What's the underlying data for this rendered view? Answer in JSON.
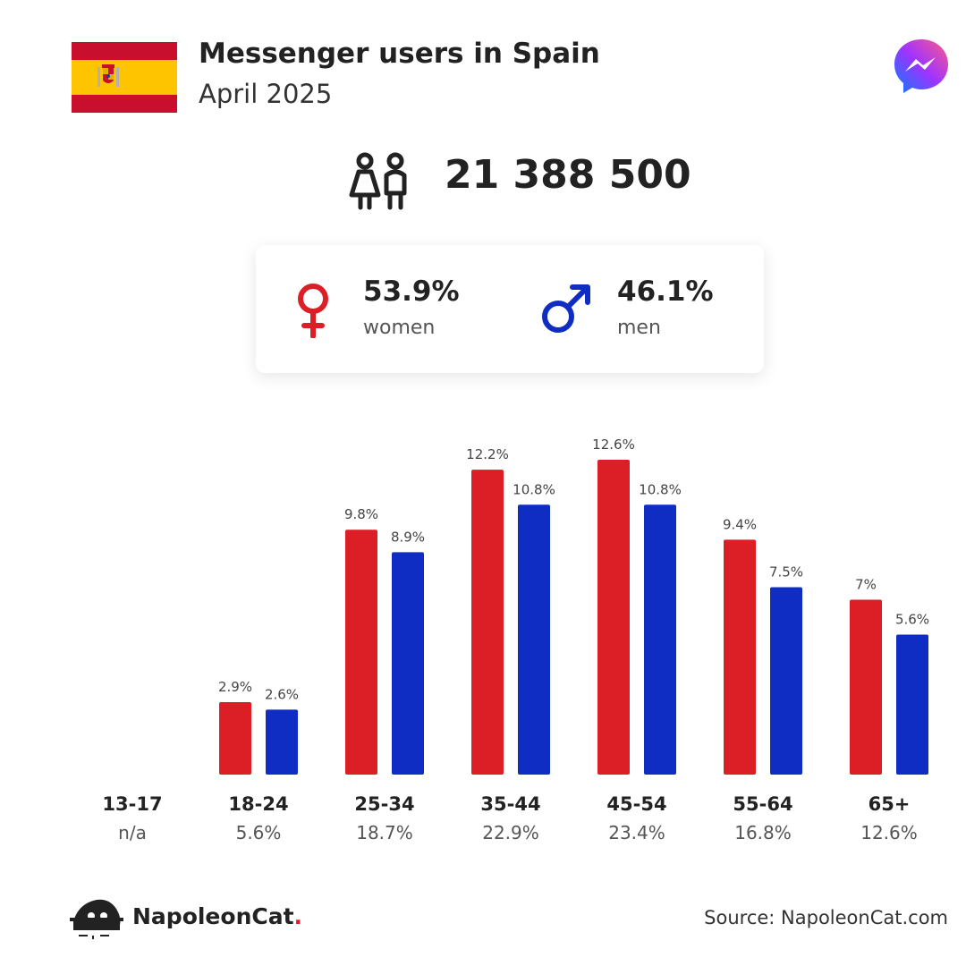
{
  "header": {
    "title": "Messenger users in Spain",
    "subtitle": "April 2025",
    "flag_country": "Spain",
    "logo_icon": "messenger-logo-icon"
  },
  "total": {
    "value": "21 388 500",
    "icon": "people-icon"
  },
  "gender": {
    "women_pct": "53.9%",
    "women_label": "women",
    "women_icon": "female-symbol-icon",
    "men_pct": "46.1%",
    "men_label": "men",
    "men_icon": "male-symbol-icon"
  },
  "colors": {
    "women": "#dc1f26",
    "men": "#0f2dc2",
    "text": "#222222",
    "muted": "#555555"
  },
  "chart_data": {
    "type": "bar",
    "categories": [
      "13-17",
      "18-24",
      "25-34",
      "35-44",
      "45-54",
      "55-64",
      "65+"
    ],
    "category_totals": [
      "n/a",
      "5.6%",
      "18.7%",
      "22.9%",
      "23.4%",
      "16.8%",
      "12.6%"
    ],
    "series": [
      {
        "name": "women",
        "color": "#dc1f26",
        "values": [
          null,
          2.9,
          9.8,
          12.2,
          12.6,
          9.4,
          7
        ],
        "labels": [
          "",
          "2.9%",
          "9.8%",
          "12.2%",
          "12.6%",
          "9.4%",
          "7%"
        ]
      },
      {
        "name": "men",
        "color": "#0f2dc2",
        "values": [
          null,
          2.6,
          8.9,
          10.8,
          10.8,
          7.5,
          5.6
        ],
        "labels": [
          "",
          "2.6%",
          "8.9%",
          "10.8%",
          "10.8%",
          "7.5%",
          "5.6%"
        ]
      }
    ],
    "ylim": [
      0,
      12.6
    ],
    "grid": false,
    "legend": "none"
  },
  "footer": {
    "brand_name": "NapoleonCat",
    "brand_dot": ".",
    "source": "Source: NapoleonCat.com"
  }
}
